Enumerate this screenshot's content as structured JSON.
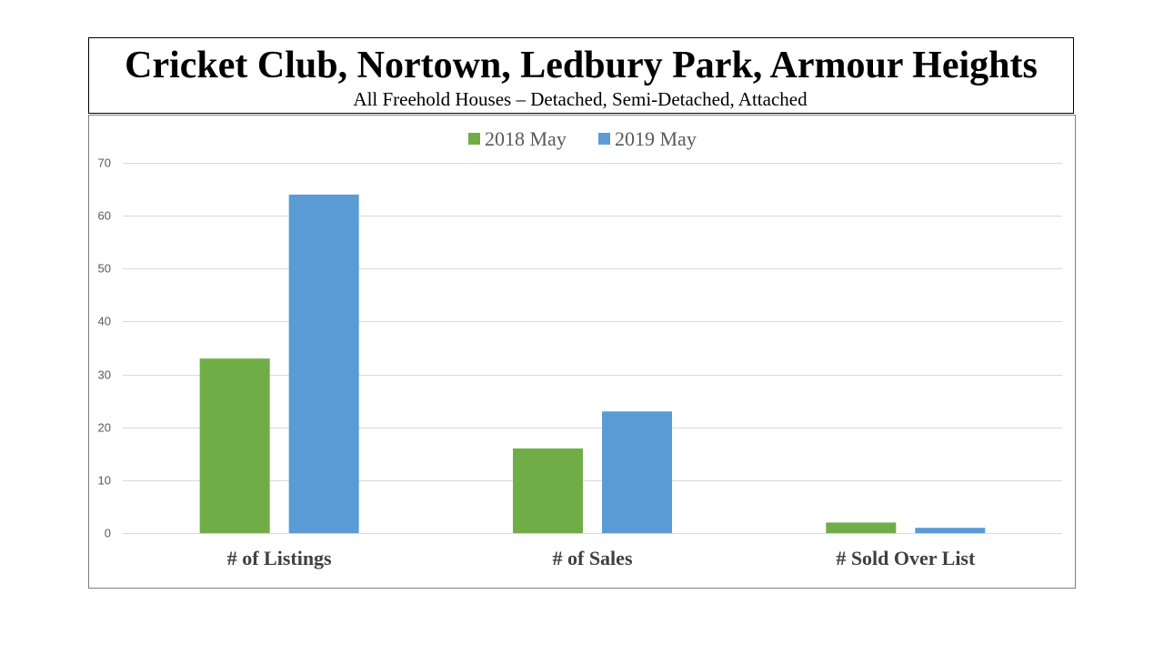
{
  "chart_data": {
    "type": "bar",
    "title": "Cricket Club, Nortown, Ledbury Park, Armour Heights",
    "subtitle": "All Freehold Houses – Detached, Semi-Detached, Attached",
    "categories": [
      "# of Listings",
      "# of Sales",
      "# Sold Over List"
    ],
    "series": [
      {
        "name": "2018 May",
        "color": "#70AD47",
        "values": [
          33,
          16,
          2
        ]
      },
      {
        "name": "2019 May",
        "color": "#5B9BD5",
        "values": [
          64,
          23,
          1
        ]
      }
    ],
    "ylim": [
      0,
      70
    ],
    "yticks": [
      0,
      10,
      20,
      30,
      40,
      50,
      60,
      70
    ],
    "xlabel": "",
    "ylabel": "",
    "legend": "top-center",
    "grid": true,
    "gridline_color": "#D9D9D9"
  }
}
